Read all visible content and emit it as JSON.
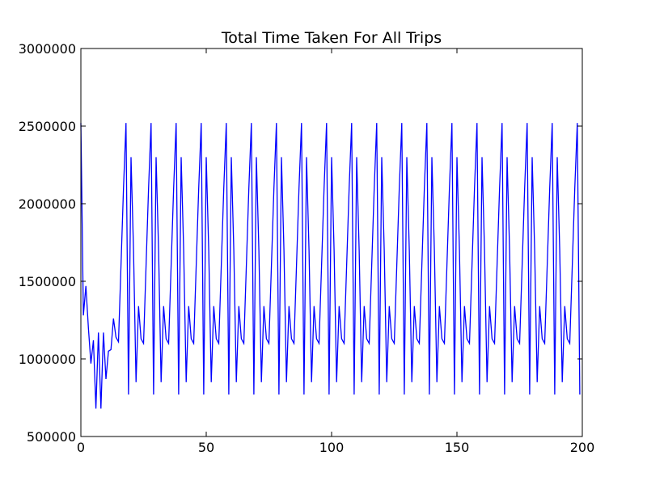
{
  "chart_data": {
    "type": "line",
    "title": "Total Time Taken For All Trips",
    "xlabel": "",
    "ylabel": "",
    "xlim": [
      0,
      200
    ],
    "ylim": [
      500000,
      3000000
    ],
    "xticks": [
      0,
      50,
      100,
      150,
      200
    ],
    "yticks": [
      500000,
      1000000,
      1500000,
      2000000,
      2500000,
      3000000
    ],
    "xtick_labels": [
      "0",
      "50",
      "100",
      "150",
      "200"
    ],
    "ytick_labels": [
      "500000",
      "1000000",
      "1500000",
      "2000000",
      "2500000",
      "3000000"
    ],
    "grid": false,
    "line_color": "#0000ff",
    "series": [
      {
        "name": "",
        "x": [
          0,
          1,
          2,
          3,
          4,
          5,
          6,
          7,
          8,
          9,
          10,
          11,
          12,
          13,
          14,
          15,
          16,
          17,
          18,
          19,
          20,
          21,
          22,
          23,
          24,
          25,
          26,
          27,
          28,
          29,
          30,
          31,
          32,
          33,
          34,
          35,
          36,
          37,
          38,
          39,
          40,
          41,
          42,
          43,
          44,
          45,
          46,
          47,
          48,
          49,
          50,
          51,
          52,
          53,
          54,
          55,
          56,
          57,
          58,
          59,
          60,
          61,
          62,
          63,
          64,
          65,
          66,
          67,
          68,
          69,
          70,
          71,
          72,
          73,
          74,
          75,
          76,
          77,
          78,
          79,
          80,
          81,
          82,
          83,
          84,
          85,
          86,
          87,
          88,
          89,
          90,
          91,
          92,
          93,
          94,
          95,
          96,
          97,
          98,
          99,
          100,
          101,
          102,
          103,
          104,
          105,
          106,
          107,
          108,
          109,
          110,
          111,
          112,
          113,
          114,
          115,
          116,
          117,
          118,
          119,
          120,
          121,
          122,
          123,
          124,
          125,
          126,
          127,
          128,
          129,
          130,
          131,
          132,
          133,
          134,
          135,
          136,
          137,
          138,
          139,
          140,
          141,
          142,
          143,
          144,
          145,
          146,
          147,
          148,
          149,
          150,
          151,
          152,
          153,
          154,
          155,
          156,
          157,
          158,
          159,
          160,
          161,
          162,
          163,
          164,
          165,
          166,
          167,
          168,
          169,
          170,
          171,
          172,
          173,
          174,
          175,
          176,
          177,
          178,
          179,
          180,
          181,
          182,
          183,
          184,
          185,
          186,
          187,
          188,
          189,
          190,
          191,
          192,
          193,
          194,
          195,
          196,
          197,
          198,
          199
        ],
        "values": [
          2520000,
          1280000,
          1470000,
          1200000,
          970000,
          1120000,
          680000,
          1170000,
          680000,
          1170000,
          870000,
          1050000,
          1060000,
          1260000,
          1140000,
          1110000,
          1600000,
          2100000,
          2520000,
          770000,
          2300000,
          1700000,
          850000,
          1340000,
          1130000,
          1100000,
          1600000,
          2100000,
          2520000,
          770000,
          2300000,
          1700000,
          850000,
          1340000,
          1130000,
          1100000,
          1600000,
          2100000,
          2520000,
          770000,
          2300000,
          1700000,
          850000,
          1340000,
          1130000,
          1100000,
          1600000,
          2100000,
          2520000,
          770000,
          2300000,
          1700000,
          850000,
          1340000,
          1130000,
          1100000,
          1600000,
          2100000,
          2520000,
          770000,
          2300000,
          1700000,
          850000,
          1340000,
          1130000,
          1100000,
          1600000,
          2100000,
          2520000,
          770000,
          2300000,
          1700000,
          850000,
          1340000,
          1130000,
          1100000,
          1600000,
          2100000,
          2520000,
          770000,
          2300000,
          1700000,
          850000,
          1340000,
          1130000,
          1100000,
          1600000,
          2100000,
          2520000,
          770000,
          2300000,
          1700000,
          850000,
          1340000,
          1130000,
          1100000,
          1600000,
          2100000,
          2520000,
          770000,
          2300000,
          1700000,
          850000,
          1340000,
          1130000,
          1100000,
          1600000,
          2100000,
          2520000,
          770000,
          2300000,
          1700000,
          850000,
          1340000,
          1130000,
          1100000,
          1600000,
          2100000,
          2520000,
          770000,
          2300000,
          1700000,
          850000,
          1340000,
          1130000,
          1100000,
          1600000,
          2100000,
          2520000,
          770000,
          2300000,
          1700000,
          850000,
          1340000,
          1130000,
          1100000,
          1600000,
          2100000,
          2520000,
          770000,
          2300000,
          1700000,
          850000,
          1340000,
          1130000,
          1100000,
          1600000,
          2100000,
          2520000,
          770000,
          2300000,
          1700000,
          850000,
          1340000,
          1130000,
          1100000,
          1600000,
          2100000,
          2520000,
          770000,
          2300000,
          1700000,
          850000,
          1340000,
          1130000,
          1100000,
          1600000,
          2100000,
          2520000,
          770000,
          2300000,
          1700000,
          850000,
          1340000,
          1130000,
          1100000,
          1600000,
          2100000,
          2520000,
          770000,
          2300000,
          1700000,
          850000,
          1340000,
          1130000,
          1100000,
          1600000,
          2100000,
          2520000,
          770000,
          2300000,
          1700000,
          850000,
          1340000,
          1130000,
          1100000,
          1600000,
          2100000,
          2520000,
          770000
        ]
      }
    ]
  }
}
